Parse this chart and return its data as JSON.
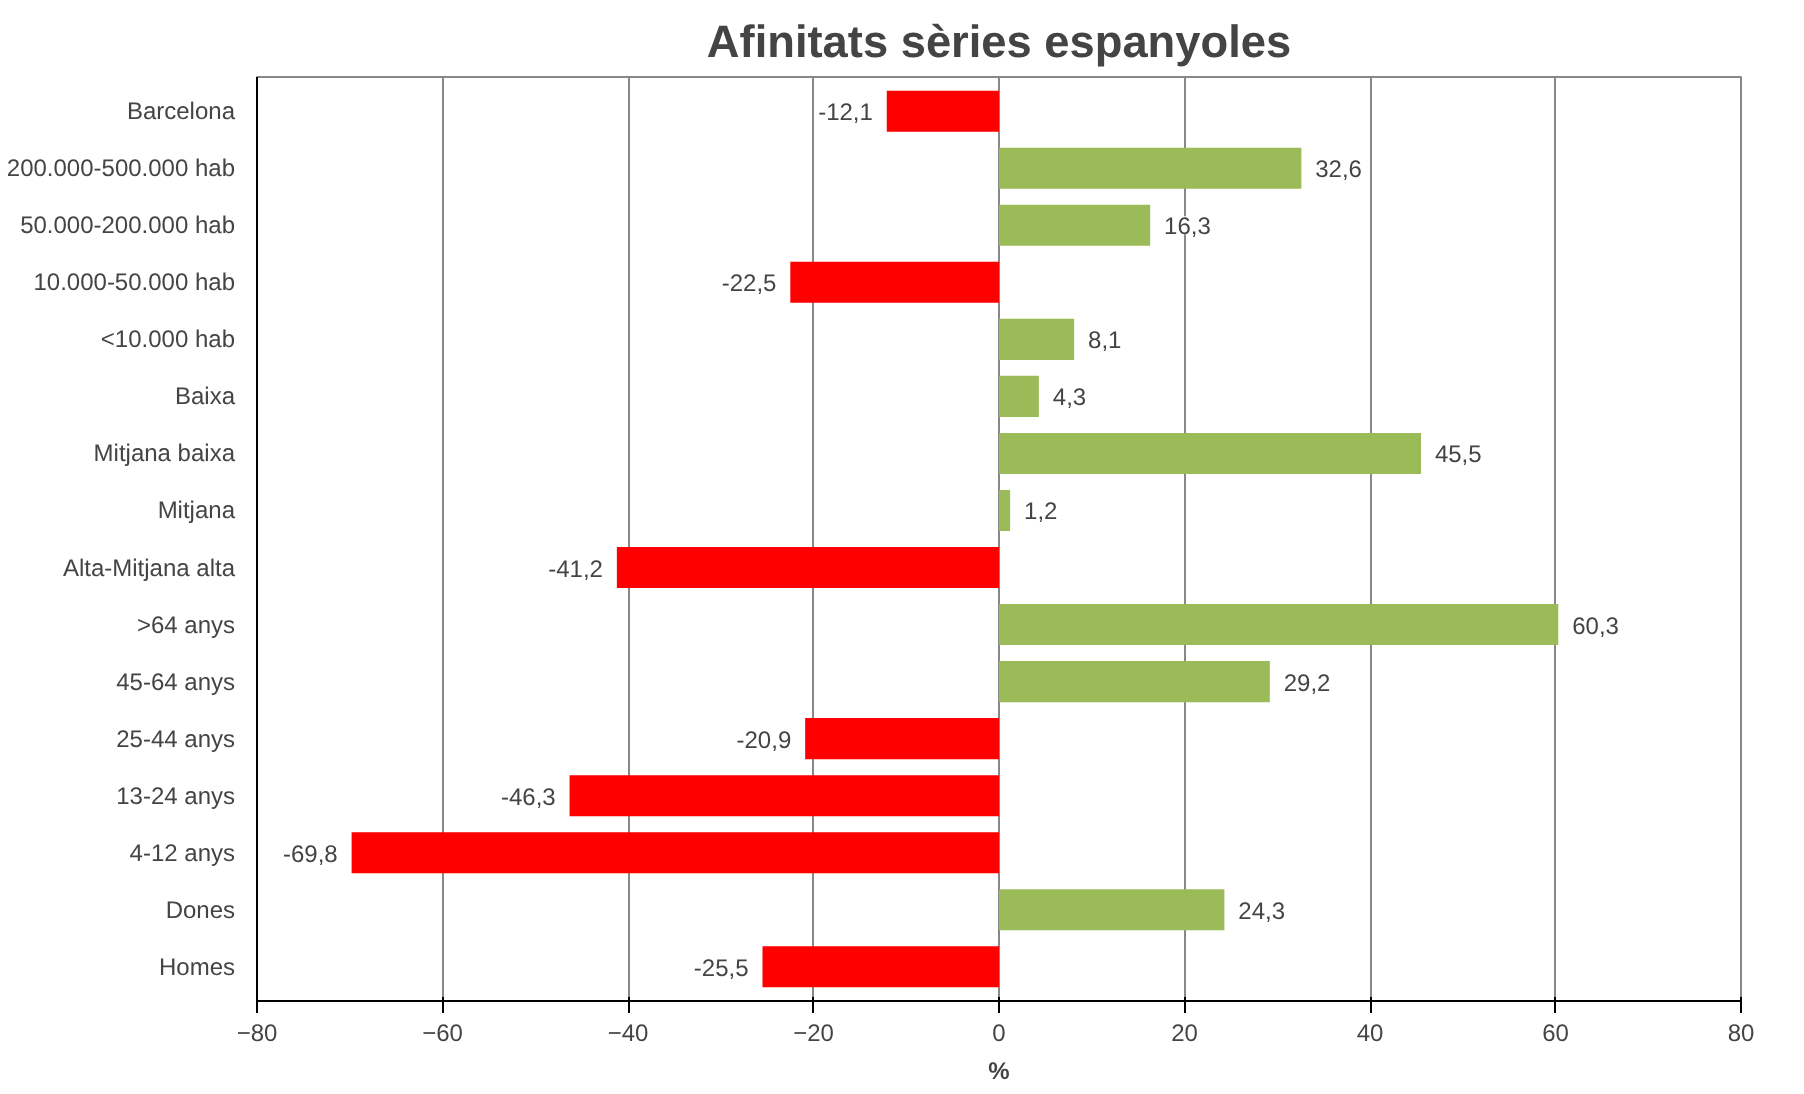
{
  "chart_data": {
    "type": "bar",
    "orientation": "horizontal",
    "title": "Afinitats sèries espanyoles",
    "xlabel": "%",
    "categories": [
      "Barcelona",
      "200.000-500.000 hab",
      "50.000-200.000 hab",
      "10.000-50.000 hab",
      "<10.000 hab",
      "Baixa",
      "Mitjana baixa",
      "Mitjana",
      "Alta-Mitjana alta",
      ">64 anys",
      "45-64 anys",
      "25-44 anys",
      "13-24 anys",
      "4-12 anys",
      "Dones",
      "Homes"
    ],
    "values": [
      -12.1,
      32.6,
      16.3,
      -22.5,
      8.1,
      4.3,
      45.5,
      1.2,
      -41.2,
      60.3,
      29.2,
      -20.9,
      -46.3,
      -69.8,
      24.3,
      -25.5
    ],
    "colors": [
      "#ff0000",
      "#9bbb59",
      "#9bbb59",
      "#ff0000",
      "#9bbb59",
      "#9bbb59",
      "#9bbb59",
      "#9bbb59",
      "#ff0000",
      "#9bbb59",
      "#9bbb59",
      "#ff0000",
      "#ff0000",
      "#ff0000",
      "#9bbb59",
      "#ff0000"
    ],
    "value_labels": [
      "-12,1",
      "32,6",
      "16,3",
      "-22,5",
      "8,1",
      "4,3",
      "45,5",
      "1,2",
      "-41,2",
      "60,3",
      "29,2",
      "-20,9",
      "-46,3",
      "-69,8",
      "24,3",
      "-25,5"
    ],
    "xlim": [
      -80,
      80
    ],
    "xticks": [
      -80,
      -60,
      -40,
      -20,
      0,
      20,
      40,
      60,
      80
    ],
    "grid": "x"
  }
}
